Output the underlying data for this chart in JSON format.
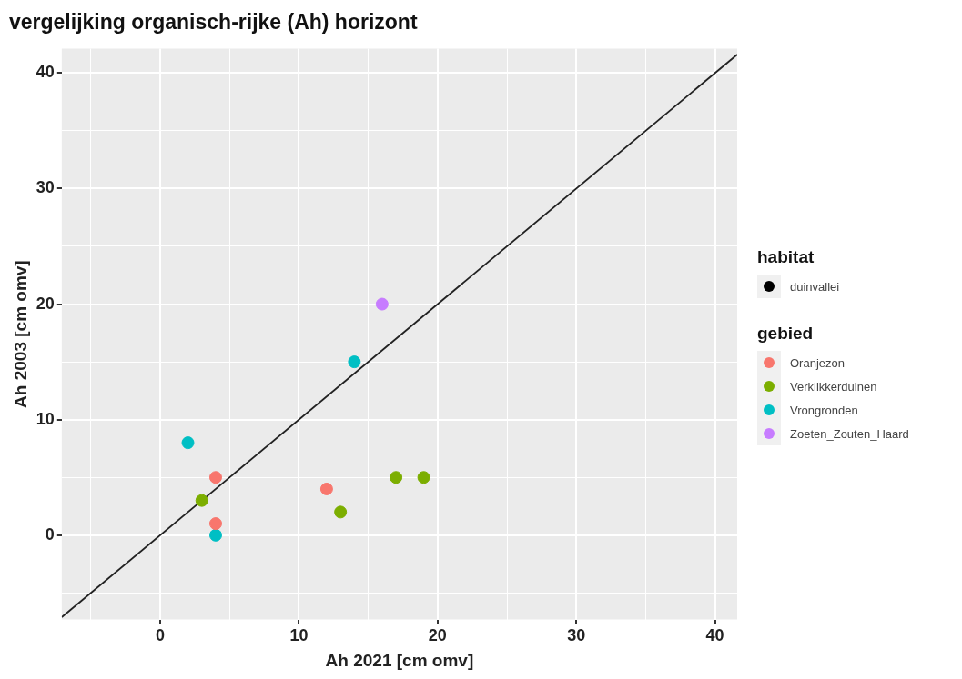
{
  "chart_data": {
    "type": "scatter",
    "title": "vergelijking organisch-rijke (Ah) horizont",
    "xlabel": "Ah 2021 [cm omv]",
    "ylabel": "Ah 2003 [cm omv]",
    "legend_title": "gebied",
    "legend": "right",
    "grid": true,
    "marker": "circle",
    "annotations": [
      "habitat",
      "duinvallei"
    ],
    "xlim": [
      -7.1,
      41.6
    ],
    "ylim": [
      -7.3,
      42.1
    ],
    "xticks": [
      {
        "value": -5,
        "label": null
      },
      0,
      {
        "value": 5,
        "label": null
      },
      10,
      {
        "value": 15,
        "label": null
      },
      20,
      {
        "value": 25,
        "label": null
      },
      30,
      {
        "value": 35,
        "label": null
      },
      40
    ],
    "yticks": [
      {
        "value": -5,
        "label": null
      },
      0,
      {
        "value": 5,
        "label": null
      },
      10,
      {
        "value": 15,
        "label": null
      },
      20,
      {
        "value": 25,
        "label": null
      },
      30,
      {
        "value": 35,
        "label": null
      },
      40
    ],
    "series": [
      {
        "name": "Oranjezon",
        "color": "#f8766d",
        "x": [
          4,
          4,
          12
        ],
        "values": [
          5,
          1,
          4
        ]
      },
      {
        "name": "Verklikkerduinen",
        "color": "#7cae00",
        "x": [
          3,
          13,
          17,
          19
        ],
        "values": [
          3,
          2,
          5,
          5
        ]
      },
      {
        "name": "Vrongronden",
        "color": "#00bfc4",
        "x": [
          2,
          4,
          14
        ],
        "values": [
          8,
          0,
          15
        ]
      },
      {
        "name": "Zoeten_Zouten_Haard",
        "color": "#c77cff",
        "x": [
          16
        ],
        "values": [
          20
        ]
      },
      {
        "type": "line",
        "marker": "none",
        "color": "#222222",
        "x": [
          -7.1,
          41.6
        ],
        "values": [
          -7.1,
          41.6
        ]
      }
    ]
  }
}
